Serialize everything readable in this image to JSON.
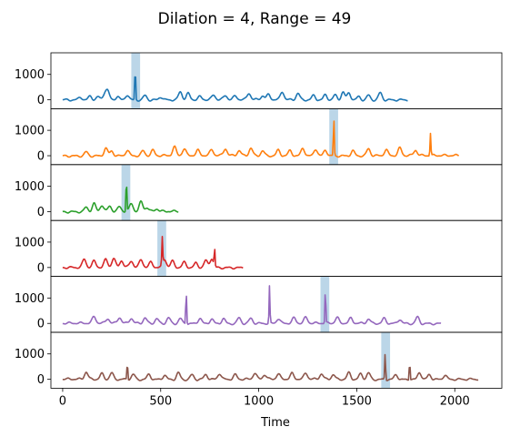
{
  "chart_data": {
    "type": "line",
    "title": "Dilation = 4, Range = 49",
    "xlabel": "Time",
    "xlim": [
      -60,
      2240
    ],
    "ylim": [
      -350,
      1850
    ],
    "x_ticks": [
      0,
      500,
      1000,
      1500,
      2000
    ],
    "y_ticks": [
      0,
      1000
    ],
    "panels": [
      {
        "color": "#1f77b4",
        "length": 1760,
        "highlight": [
          350,
          395
        ],
        "baseline_bumps": [
          [
            90,
            110
          ],
          [
            140,
            150
          ],
          [
            180,
            130
          ],
          [
            215,
            260
          ],
          [
            230,
            330
          ],
          [
            280,
            150
          ],
          [
            330,
            210
          ],
          [
            420,
            180
          ],
          [
            500,
            120
          ],
          [
            600,
            320
          ],
          [
            640,
            250
          ],
          [
            700,
            120
          ],
          [
            770,
            180
          ],
          [
            830,
            160
          ],
          [
            880,
            140
          ],
          [
            950,
            250
          ],
          [
            1020,
            150
          ],
          [
            1050,
            200
          ],
          [
            1120,
            320
          ],
          [
            1200,
            260
          ],
          [
            1280,
            180
          ],
          [
            1340,
            210
          ],
          [
            1390,
            200
          ],
          [
            1430,
            310
          ],
          [
            1460,
            290
          ],
          [
            1510,
            140
          ],
          [
            1560,
            190
          ],
          [
            1620,
            290
          ]
        ],
        "spikes": [
          [
            370,
            1350
          ]
        ]
      },
      {
        "color": "#ff7f0e",
        "length": 2020,
        "highlight": [
          1360,
          1405
        ],
        "baseline_bumps": [
          [
            120,
            160
          ],
          [
            220,
            310
          ],
          [
            250,
            190
          ],
          [
            330,
            220
          ],
          [
            410,
            190
          ],
          [
            460,
            210
          ],
          [
            570,
            340
          ],
          [
            620,
            260
          ],
          [
            690,
            200
          ],
          [
            760,
            230
          ],
          [
            830,
            270
          ],
          [
            900,
            200
          ],
          [
            960,
            300
          ],
          [
            1020,
            190
          ],
          [
            1100,
            230
          ],
          [
            1160,
            220
          ],
          [
            1225,
            320
          ],
          [
            1290,
            280
          ],
          [
            1340,
            240
          ],
          [
            1480,
            200
          ],
          [
            1560,
            280
          ],
          [
            1650,
            230
          ],
          [
            1720,
            300
          ],
          [
            1800,
            210
          ]
        ],
        "spikes": [
          [
            1383,
            1500
          ],
          [
            1876,
            880
          ]
        ]
      },
      {
        "color": "#2ca02c",
        "length": 590,
        "highlight": [
          300,
          345
        ],
        "baseline_bumps": [
          [
            120,
            180
          ],
          [
            160,
            320
          ],
          [
            200,
            260
          ],
          [
            240,
            220
          ],
          [
            290,
            190
          ],
          [
            350,
            310
          ],
          [
            400,
            380
          ],
          [
            430,
            150
          ],
          [
            480,
            100
          ]
        ],
        "spikes": [
          [
            325,
            1350
          ]
        ]
      },
      {
        "color": "#d62728",
        "length": 920,
        "highlight": [
          483,
          528
        ],
        "baseline_bumps": [
          [
            110,
            320
          ],
          [
            160,
            250
          ],
          [
            220,
            310
          ],
          [
            260,
            350
          ],
          [
            300,
            260
          ],
          [
            350,
            250
          ],
          [
            400,
            300
          ],
          [
            450,
            200
          ],
          [
            520,
            320
          ],
          [
            560,
            250
          ],
          [
            620,
            210
          ],
          [
            680,
            180
          ],
          [
            730,
            280
          ],
          [
            760,
            360
          ]
        ],
        "spikes": [
          [
            508,
            1050
          ],
          [
            775,
            700
          ]
        ]
      },
      {
        "color": "#9467bd",
        "length": 1930,
        "highlight": [
          1315,
          1360
        ],
        "baseline_bumps": [
          [
            160,
            260
          ],
          [
            230,
            180
          ],
          [
            290,
            230
          ],
          [
            350,
            200
          ],
          [
            420,
            220
          ],
          [
            480,
            190
          ],
          [
            540,
            230
          ],
          [
            600,
            200
          ],
          [
            700,
            220
          ],
          [
            760,
            190
          ],
          [
            820,
            200
          ],
          [
            900,
            230
          ],
          [
            960,
            210
          ],
          [
            1100,
            180
          ],
          [
            1180,
            210
          ],
          [
            1240,
            230
          ],
          [
            1400,
            220
          ],
          [
            1470,
            200
          ],
          [
            1560,
            170
          ],
          [
            1640,
            200
          ],
          [
            1720,
            170
          ],
          [
            1810,
            260
          ]
        ],
        "spikes": [
          [
            630,
            1350
          ],
          [
            1055,
            1450
          ],
          [
            1340,
            1350
          ]
        ]
      },
      {
        "color": "#8c564b",
        "length": 2120,
        "highlight": [
          1625,
          1670
        ],
        "baseline_bumps": [
          [
            120,
            280
          ],
          [
            200,
            220
          ],
          [
            250,
            250
          ],
          [
            360,
            200
          ],
          [
            440,
            210
          ],
          [
            520,
            180
          ],
          [
            590,
            270
          ],
          [
            660,
            190
          ],
          [
            730,
            200
          ],
          [
            800,
            230
          ],
          [
            880,
            180
          ],
          [
            980,
            240
          ],
          [
            1030,
            170
          ],
          [
            1100,
            200
          ],
          [
            1170,
            220
          ],
          [
            1240,
            240
          ],
          [
            1320,
            210
          ],
          [
            1380,
            180
          ],
          [
            1460,
            260
          ],
          [
            1520,
            220
          ],
          [
            1560,
            260
          ],
          [
            1700,
            200
          ],
          [
            1820,
            290
          ],
          [
            1870,
            200
          ],
          [
            1950,
            170
          ]
        ],
        "spikes": [
          [
            330,
            730
          ],
          [
            1645,
            1100
          ],
          [
            1770,
            780
          ]
        ]
      }
    ]
  }
}
